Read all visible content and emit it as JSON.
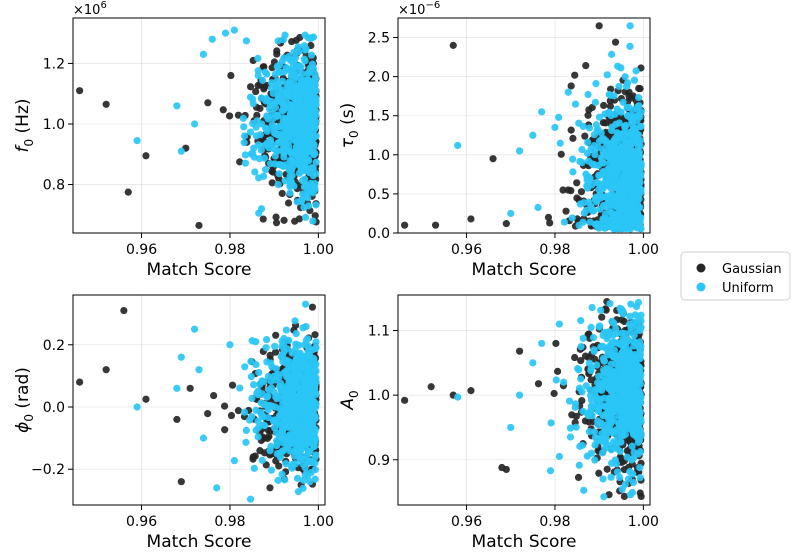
{
  "chart_data": [
    {
      "type": "scatter",
      "id": "f0",
      "xlabel": "Match Score",
      "ylabel_main": "f",
      "ylabel_sub": "0",
      "ylabel_unit": " (Hz)",
      "multiplier": "×10",
      "multiplier_exp": "6",
      "xlim": [
        0.9445,
        1.0015
      ],
      "ylim": [
        0.64,
        1.35
      ],
      "xticks": [
        0.96,
        0.98,
        1.0
      ],
      "xtick_labels": [
        "0.96",
        "0.98",
        "1.00"
      ],
      "yticks": [
        0.8,
        1.0,
        1.2
      ],
      "ytick_labels": [
        "0.8",
        "1.0",
        "1.2"
      ],
      "outliers": {
        "Gaussian": [
          [
            0.946,
            1.11
          ],
          [
            0.952,
            1.065
          ],
          [
            0.957,
            0.775
          ],
          [
            0.961,
            0.895
          ],
          [
            0.973,
            0.665
          ],
          [
            0.97,
            0.92
          ],
          [
            0.975,
            1.07
          ]
        ],
        "Uniform": [
          [
            0.959,
            0.945
          ],
          [
            0.968,
            1.06
          ],
          [
            0.969,
            0.91
          ],
          [
            0.972,
            1.0
          ],
          [
            0.974,
            1.23
          ],
          [
            0.976,
            1.28
          ],
          [
            0.979,
            1.3
          ],
          [
            0.981,
            1.31
          ]
        ]
      },
      "cloud": {
        "center": 1.0,
        "spread": 0.11,
        "min": 0.67,
        "max": 1.3
      }
    },
    {
      "type": "scatter",
      "id": "tau0",
      "xlabel": "Match Score",
      "ylabel_main": "τ",
      "ylabel_sub": "0",
      "ylabel_unit": " (s)",
      "multiplier": "×10",
      "multiplier_exp": "−6",
      "xlim": [
        0.9445,
        1.0015
      ],
      "ylim": [
        0.0,
        2.75
      ],
      "xticks": [
        0.96,
        0.98,
        1.0
      ],
      "xtick_labels": [
        "0.96",
        "0.98",
        "1.00"
      ],
      "yticks": [
        0.0,
        0.5,
        1.0,
        1.5,
        2.0,
        2.5
      ],
      "ytick_labels": [
        "0.0",
        "0.5",
        "1.0",
        "1.5",
        "2.0",
        "2.5"
      ],
      "outliers": {
        "Gaussian": [
          [
            0.946,
            0.1
          ],
          [
            0.953,
            0.1
          ],
          [
            0.957,
            2.4
          ],
          [
            0.961,
            0.18
          ],
          [
            0.966,
            0.95
          ],
          [
            0.969,
            0.12
          ],
          [
            0.99,
            2.65
          ]
        ],
        "Uniform": [
          [
            0.958,
            1.12
          ],
          [
            0.97,
            0.25
          ],
          [
            0.972,
            1.05
          ],
          [
            0.975,
            1.25
          ],
          [
            0.977,
            1.55
          ],
          [
            0.98,
            1.35
          ],
          [
            0.983,
            1.8
          ],
          [
            0.997,
            2.65
          ]
        ]
      },
      "cloud": {
        "center": 0.75,
        "spread": 0.5,
        "min": 0.05,
        "max": 2.6
      }
    },
    {
      "type": "scatter",
      "id": "phi0",
      "xlabel": "Match Score",
      "ylabel_main": "ϕ",
      "ylabel_sub": "0",
      "ylabel_unit": " (rad)",
      "multiplier": "",
      "multiplier_exp": "",
      "xlim": [
        0.9445,
        1.0015
      ],
      "ylim": [
        -0.315,
        0.36
      ],
      "xticks": [
        0.96,
        0.98,
        1.0
      ],
      "xtick_labels": [
        "0.96",
        "0.98",
        "1.00"
      ],
      "yticks": [
        -0.2,
        0.0,
        0.2
      ],
      "ytick_labels": [
        "−0.2",
        "0.0",
        "0.2"
      ],
      "outliers": {
        "Gaussian": [
          [
            0.946,
            0.08
          ],
          [
            0.952,
            0.12
          ],
          [
            0.956,
            0.31
          ],
          [
            0.961,
            0.025
          ],
          [
            0.969,
            -0.24
          ],
          [
            0.968,
            -0.04
          ],
          [
            0.971,
            0.06
          ]
        ],
        "Uniform": [
          [
            0.959,
            0.0
          ],
          [
            0.968,
            0.06
          ],
          [
            0.969,
            0.16
          ],
          [
            0.972,
            0.25
          ],
          [
            0.973,
            0.12
          ],
          [
            0.974,
            -0.1
          ],
          [
            0.977,
            -0.26
          ],
          [
            0.98,
            0.2
          ]
        ]
      },
      "cloud": {
        "center": 0.0,
        "spread": 0.1,
        "min": -0.3,
        "max": 0.34
      }
    },
    {
      "type": "scatter",
      "id": "A0",
      "xlabel": "Match Score",
      "ylabel_main": "A",
      "ylabel_sub": "0",
      "ylabel_unit": "",
      "multiplier": "",
      "multiplier_exp": "",
      "xlim": [
        0.9445,
        1.0015
      ],
      "ylim": [
        0.83,
        1.155
      ],
      "xticks": [
        0.96,
        0.98,
        1.0
      ],
      "xtick_labels": [
        "0.96",
        "0.98",
        "1.00"
      ],
      "yticks": [
        0.9,
        1.0,
        1.1
      ],
      "ytick_labels": [
        "0.9",
        "1.0",
        "1.1"
      ],
      "outliers": {
        "Gaussian": [
          [
            0.946,
            0.992
          ],
          [
            0.952,
            1.013
          ],
          [
            0.957,
            1.0
          ],
          [
            0.961,
            1.007
          ],
          [
            0.968,
            0.888
          ],
          [
            0.969,
            0.885
          ],
          [
            0.972,
            1.068
          ]
        ],
        "Uniform": [
          [
            0.958,
            0.997
          ],
          [
            0.97,
            0.95
          ],
          [
            0.972,
            1.0
          ],
          [
            0.975,
            1.05
          ],
          [
            0.977,
            1.08
          ],
          [
            0.979,
            0.883
          ],
          [
            0.981,
            1.11
          ]
        ]
      },
      "cloud": {
        "center": 1.0,
        "spread": 0.055,
        "min": 0.84,
        "max": 1.145
      }
    }
  ],
  "legend": {
    "entries": [
      {
        "label": "Gaussian",
        "color": "#262626"
      },
      {
        "label": "Uniform",
        "color": "#29c5f6"
      }
    ],
    "placement": "right"
  },
  "colors": {
    "gaussian": "#262626",
    "uniform": "#29c5f6"
  }
}
